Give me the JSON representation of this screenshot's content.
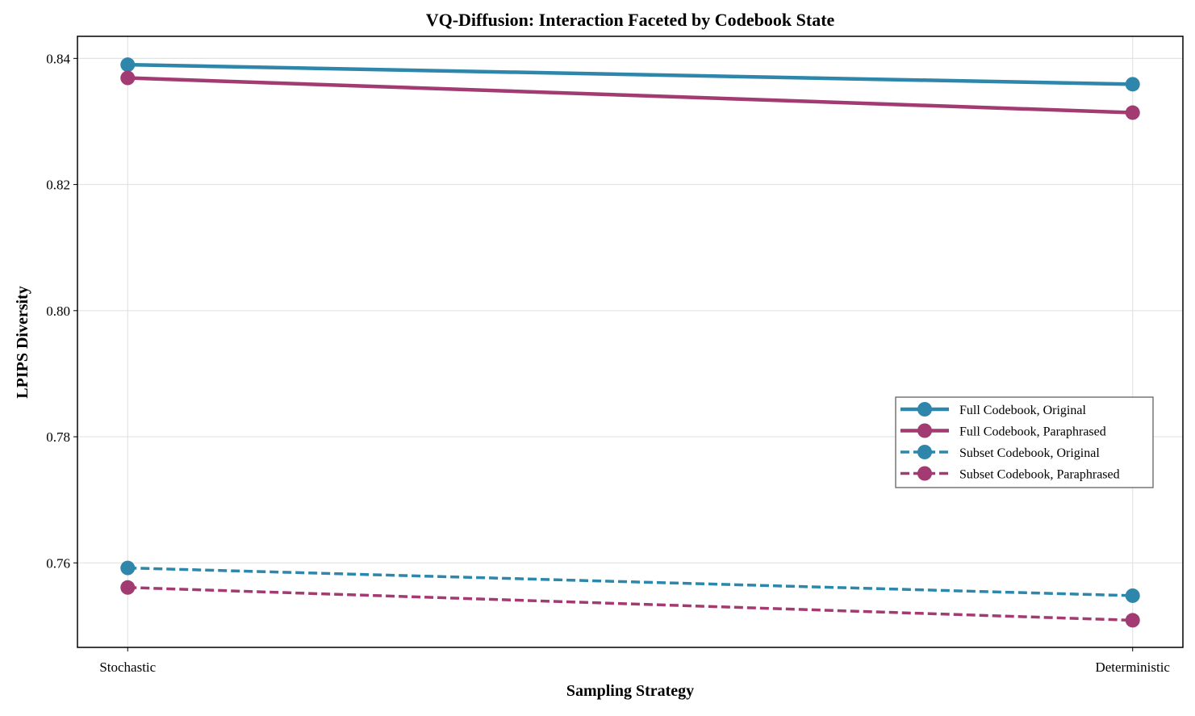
{
  "chart_data": {
    "type": "line",
    "title": "VQ-Diffusion: Interaction Faceted by Codebook State",
    "xlabel": "Sampling Strategy",
    "ylabel": "LPIPS Diversity",
    "categories": [
      "Stochastic",
      "Deterministic"
    ],
    "xlim": [
      -0.05,
      1.05
    ],
    "ylim": [
      0.7466,
      0.8435
    ],
    "yticks": [
      0.76,
      0.78,
      0.8,
      0.82,
      0.84
    ],
    "ytick_labels": [
      "0.76",
      "0.78",
      "0.80",
      "0.82",
      "0.84"
    ],
    "grid": true,
    "legend_position": "center-right",
    "series": [
      {
        "name": "Full Codebook, Original",
        "values": [
          0.839,
          0.8359
        ],
        "color": "#2E86AB",
        "dash": "solid"
      },
      {
        "name": "Full Codebook, Paraphrased",
        "values": [
          0.8369,
          0.8314
        ],
        "color": "#A23B72",
        "dash": "solid"
      },
      {
        "name": "Subset Codebook, Original",
        "values": [
          0.7592,
          0.7548
        ],
        "color": "#2E86AB",
        "dash": "dashed"
      },
      {
        "name": "Subset Codebook, Paraphrased",
        "values": [
          0.7561,
          0.7509
        ],
        "color": "#A23B72",
        "dash": "dashed"
      }
    ]
  }
}
